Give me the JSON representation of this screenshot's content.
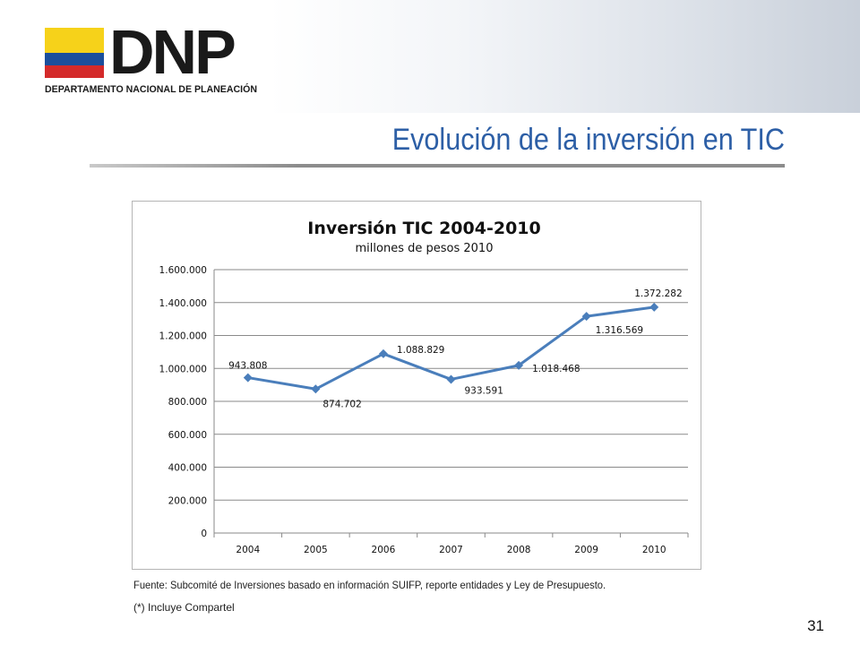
{
  "header": {
    "logo_text": "DNP",
    "logo_subtitle": "DEPARTAMENTO NACIONAL DE PLANEACIÓN",
    "flag_colors": [
      "#f6d21a",
      "#1b4f9c",
      "#d42a2a"
    ]
  },
  "slide": {
    "title": "Evolución de la inversión en TIC",
    "source": "Fuente: Subcomité de Inversiones basado en información SUIFP, reporte entidades y Ley de Presupuesto.",
    "note": "(*)  Incluye Compartel",
    "page_number": "31",
    "title_color": "#2d5fa6"
  },
  "chart_data": {
    "type": "line",
    "title": "Inversión TIC 2004-2010",
    "subtitle": "millones de pesos 2010",
    "categories": [
      "2004",
      "2005",
      "2006",
      "2007",
      "2008",
      "2009",
      "2010"
    ],
    "series": [
      {
        "values": [
          943808,
          874702,
          1088829,
          933591,
          1018468,
          1316569,
          1372282
        ],
        "labels": [
          "943.808",
          "874.702",
          "1.088.829",
          "933.591",
          "1.018.468",
          "1.316.569",
          "1.372.282"
        ],
        "color": "#4a7ebb"
      }
    ],
    "ylim": [
      0,
      1600000
    ],
    "yticks": [
      0,
      200000,
      400000,
      600000,
      800000,
      1000000,
      1200000,
      1400000,
      1600000
    ],
    "ytick_labels": [
      "0",
      "200.000",
      "400.000",
      "600.000",
      "800.000",
      "1.000.000",
      "1.200.000",
      "1.400.000",
      "1.600.000"
    ],
    "grid": true,
    "legend": "none"
  }
}
